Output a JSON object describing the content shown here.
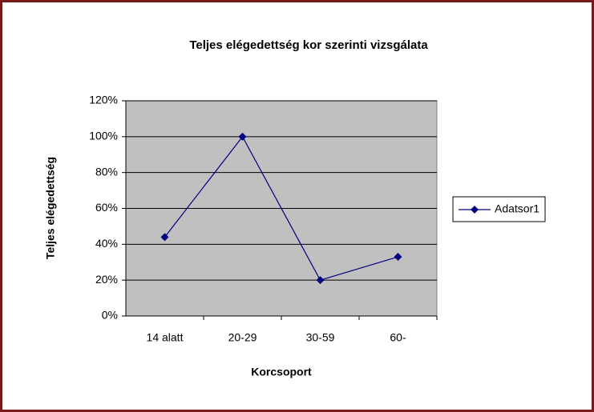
{
  "chart_data": {
    "type": "line",
    "title": "Teljes elégedettség kor  szerinti vizsgálata",
    "x_label": "Korcsoport",
    "y_label": "Teljes elégedettség",
    "categories": [
      "14 alatt",
      "20-29",
      "30-59",
      "60-"
    ],
    "series": [
      {
        "name": "Adatsor1",
        "color": "#000080",
        "values": [
          44,
          100,
          20,
          33
        ]
      }
    ],
    "ylim": [
      0,
      120
    ],
    "yticks": [
      {
        "value": 0,
        "label": "0%"
      },
      {
        "value": 20,
        "label": "20%"
      },
      {
        "value": 40,
        "label": "40%"
      },
      {
        "value": 60,
        "label": "60%"
      },
      {
        "value": 80,
        "label": "80%"
      },
      {
        "value": 100,
        "label": "100%"
      },
      {
        "value": 120,
        "label": "120%"
      }
    ],
    "grid": true,
    "legend": "right"
  }
}
